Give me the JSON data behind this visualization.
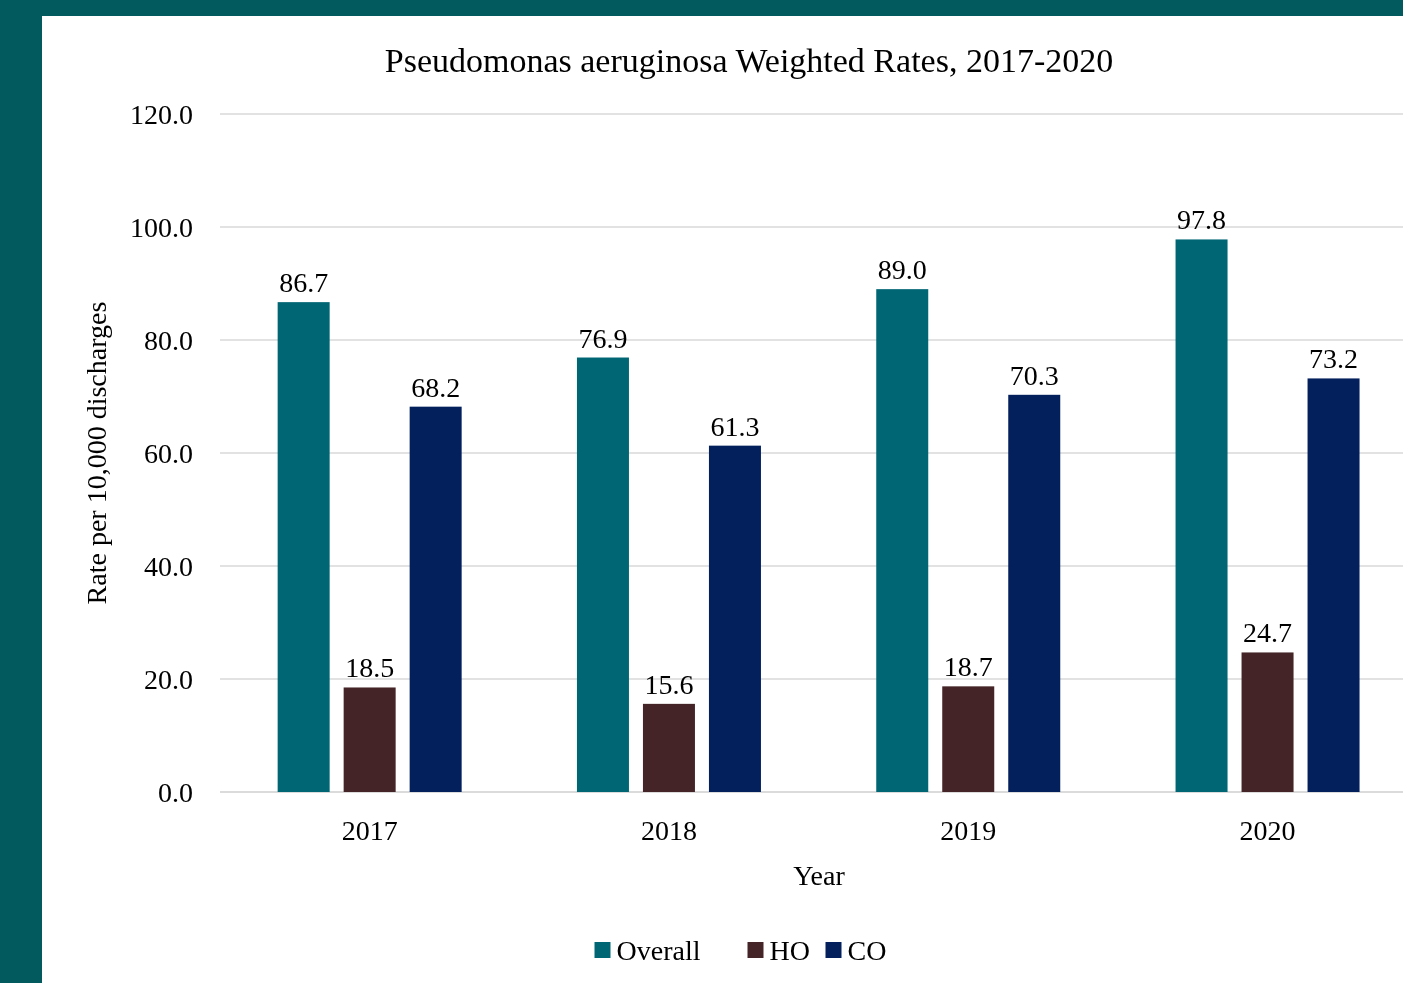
{
  "chart_data": {
    "type": "bar",
    "title": "Pseudomonas aeruginosa Weighted Rates, 2017-2020",
    "xlabel": "Year",
    "ylabel": "Rate per 10,000 discharges",
    "categories": [
      "2017",
      "2018",
      "2019",
      "2020"
    ],
    "series": [
      {
        "name": "Overall",
        "color": "#006674",
        "values": [
          86.7,
          76.9,
          89.0,
          97.8
        ],
        "value_labels": [
          "86.7",
          "76.9",
          "89.0",
          "97.8"
        ]
      },
      {
        "name": "HO",
        "color": "#442426",
        "values": [
          18.5,
          15.6,
          18.7,
          24.7
        ],
        "value_labels": [
          "18.5",
          "15.6",
          "18.7",
          "24.7"
        ]
      },
      {
        "name": "CO",
        "color": "#03205d",
        "values": [
          68.2,
          61.3,
          70.3,
          73.2
        ],
        "value_labels": [
          "68.2",
          "61.3",
          "70.3",
          "73.2"
        ]
      }
    ],
    "ylim": [
      0,
      120
    ],
    "yticks": [
      {
        "value": 0,
        "label": "0.0"
      },
      {
        "value": 20,
        "label": "20.0"
      },
      {
        "value": 40,
        "label": "40.0"
      },
      {
        "value": 60,
        "label": "60.0"
      },
      {
        "value": 80,
        "label": "80.0"
      },
      {
        "value": 100,
        "label": "100.0"
      },
      {
        "value": 120,
        "label": "120.0"
      }
    ],
    "grid": "y",
    "legend": "bottom"
  }
}
